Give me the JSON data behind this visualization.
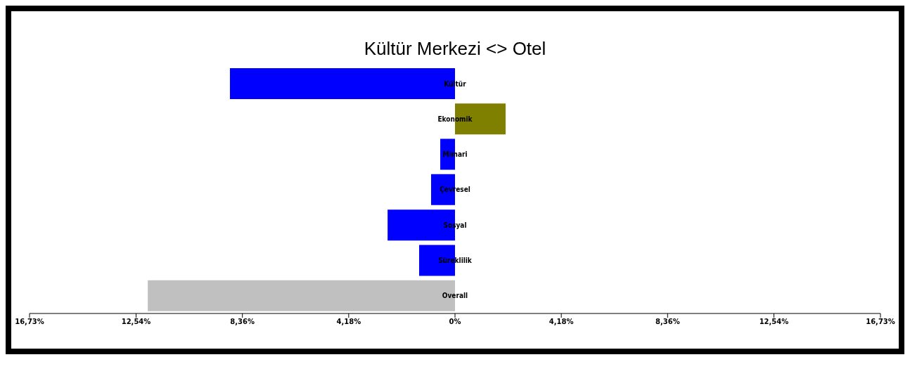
{
  "chart_data": {
    "type": "bar",
    "orientation": "horizontal",
    "title": "Kültür Merkezi <> Otel",
    "categories": [
      "Kültür",
      "Ekonomik",
      "Mimari",
      "Çevresel",
      "Sosyal",
      "Süreklilik",
      "Overall"
    ],
    "values": [
      -8.85,
      1.99,
      -0.58,
      -0.94,
      -2.65,
      -1.41,
      -12.08
    ],
    "colors": [
      "#0000ff",
      "#808000",
      "#0000ff",
      "#0000ff",
      "#0000ff",
      "#0000ff",
      "#c0c0c0"
    ],
    "xlim": [
      -16.73,
      16.73
    ],
    "xticks": [
      {
        "value": -16.73,
        "label": "16,73%"
      },
      {
        "value": -12.54,
        "label": "12,54%"
      },
      {
        "value": -8.36,
        "label": "8,36%"
      },
      {
        "value": -4.18,
        "label": "4,18%"
      },
      {
        "value": 0,
        "label": "0%"
      },
      {
        "value": 4.18,
        "label": "4,18%"
      },
      {
        "value": 8.36,
        "label": "8,36%"
      },
      {
        "value": 12.54,
        "label": "12,54%"
      },
      {
        "value": 16.73,
        "label": "16,73%"
      }
    ],
    "grid": false,
    "legend": false
  }
}
